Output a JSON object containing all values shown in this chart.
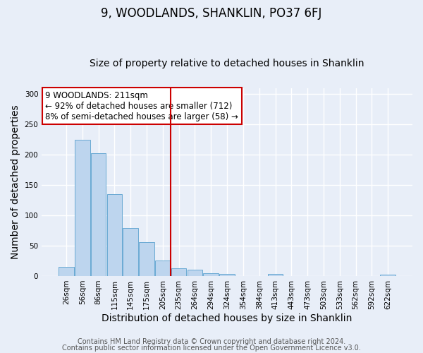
{
  "title": "9, WOODLANDS, SHANKLIN, PO37 6FJ",
  "subtitle": "Size of property relative to detached houses in Shanklin",
  "xlabel": "Distribution of detached houses by size in Shanklin",
  "ylabel": "Number of detached properties",
  "bar_labels": [
    "26sqm",
    "56sqm",
    "86sqm",
    "115sqm",
    "145sqm",
    "175sqm",
    "205sqm",
    "235sqm",
    "264sqm",
    "294sqm",
    "324sqm",
    "354sqm",
    "384sqm",
    "413sqm",
    "443sqm",
    "473sqm",
    "503sqm",
    "533sqm",
    "562sqm",
    "592sqm",
    "622sqm"
  ],
  "bar_values": [
    15,
    225,
    202,
    135,
    79,
    56,
    26,
    13,
    10,
    5,
    3,
    0,
    0,
    3,
    0,
    0,
    0,
    0,
    0,
    0,
    2
  ],
  "bar_color": "#bdd5ee",
  "bar_edge_color": "#6aaad4",
  "vline_color": "#cc0000",
  "annotation_title": "9 WOODLANDS: 211sqm",
  "annotation_line2": "← 92% of detached houses are smaller (712)",
  "annotation_line3": "8% of semi-detached houses are larger (58) →",
  "annotation_box_color": "#cc0000",
  "annotation_bg": "#ffffff",
  "ylim": [
    0,
    310
  ],
  "yticks": [
    0,
    50,
    100,
    150,
    200,
    250,
    300
  ],
  "footer1": "Contains HM Land Registry data © Crown copyright and database right 2024.",
  "footer2": "Contains public sector information licensed under the Open Government Licence v3.0.",
  "background_color": "#e8eef8",
  "grid_color": "#ffffff",
  "title_fontsize": 12,
  "subtitle_fontsize": 10,
  "axis_label_fontsize": 10,
  "tick_fontsize": 7.5,
  "footer_fontsize": 7,
  "annotation_fontsize": 8.5
}
